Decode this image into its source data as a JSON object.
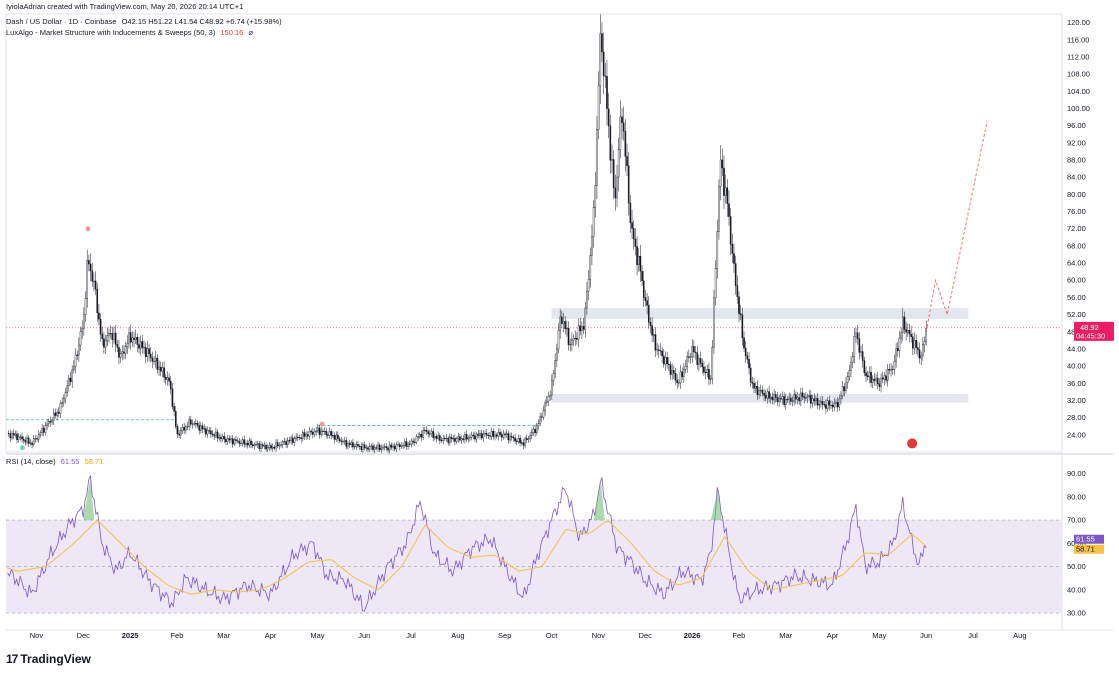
{
  "attribution": "IyiolaAdrian created with TradingView.com, May 20, 2026 20:14 UTC+1",
  "legend": {
    "symbol": "Dash / US Dollar · 1D · Coinbase",
    "ohlc": "O42.15  H51.22  L41.54  C48.92  +6.74 (+15.98%)",
    "indicator": "LuxAlgo - Market Structure with Inducements & Sweeps (50, 3)",
    "indicator_value": "150.16",
    "rsi_label": "RSI (14, close)",
    "rsi_value": "61.55",
    "rsi_ma_value": "58.71"
  },
  "price_tag": {
    "price": "48.92",
    "countdown": "04:45:30",
    "color": "#e91e63"
  },
  "brand": {
    "mark": "17",
    "name": "TradingView"
  },
  "colors": {
    "up": "#131722",
    "rsi": "#7e57c2",
    "rsi_ma": "#f5c146",
    "zone": "#e0e3eb",
    "band": "#ede7f6",
    "projection": "#ef5350"
  },
  "chart_data": [
    {
      "type": "candlestick",
      "title": "",
      "ylim": [
        20,
        122
      ],
      "y_ticks": [
        24,
        28,
        32,
        36,
        40,
        44,
        48,
        52,
        56,
        60,
        64,
        68,
        72,
        76,
        80,
        84,
        88,
        92,
        96,
        100,
        104,
        108,
        112,
        116,
        120
      ],
      "y_tick_labels": [
        "24.00",
        "28.00",
        "32.00",
        "36.00",
        "40.00",
        "44.00",
        "48.00",
        "52.00",
        "56.00",
        "60.00",
        "64.00",
        "68.00",
        "72.00",
        "76.00",
        "80.00",
        "84.00",
        "88.00",
        "92.00",
        "96.00",
        "100.00",
        "104.00",
        "108.00",
        "112.00",
        "116.00",
        "120.00"
      ],
      "x_labels": [
        "Nov",
        "Dec",
        "2025",
        "Feb",
        "Mar",
        "Apr",
        "May",
        "Jun",
        "Jul",
        "Aug",
        "Sep",
        "Oct",
        "Nov",
        "Dec",
        "2026",
        "Feb",
        "Mar",
        "Apr",
        "May",
        "Jun",
        "Jul",
        "Aug"
      ],
      "x_label_months_from_oct2024": [
        1,
        2,
        3,
        4,
        5,
        6,
        7,
        8,
        9,
        10,
        11,
        12,
        13,
        14,
        15,
        16,
        17,
        18,
        19,
        20,
        21,
        22
      ],
      "close_path": [
        {
          "m": 0.0,
          "v": 24
        },
        {
          "m": 0.5,
          "v": 24
        },
        {
          "m": 0.9,
          "v": 22
        },
        {
          "m": 1.2,
          "v": 26
        },
        {
          "m": 1.5,
          "v": 30
        },
        {
          "m": 1.8,
          "v": 40
        },
        {
          "m": 2.0,
          "v": 50
        },
        {
          "m": 2.1,
          "v": 65
        },
        {
          "m": 2.25,
          "v": 58
        },
        {
          "m": 2.4,
          "v": 45
        },
        {
          "m": 2.6,
          "v": 48
        },
        {
          "m": 2.8,
          "v": 42
        },
        {
          "m": 3.0,
          "v": 47
        },
        {
          "m": 3.3,
          "v": 44
        },
        {
          "m": 3.6,
          "v": 40
        },
        {
          "m": 3.85,
          "v": 36
        },
        {
          "m": 4.0,
          "v": 24
        },
        {
          "m": 4.3,
          "v": 27
        },
        {
          "m": 4.6,
          "v": 25
        },
        {
          "m": 5.0,
          "v": 23
        },
        {
          "m": 5.5,
          "v": 22
        },
        {
          "m": 6.0,
          "v": 21
        },
        {
          "m": 6.5,
          "v": 23
        },
        {
          "m": 7.0,
          "v": 25
        },
        {
          "m": 7.3,
          "v": 24
        },
        {
          "m": 7.6,
          "v": 22
        },
        {
          "m": 8.0,
          "v": 21
        },
        {
          "m": 8.5,
          "v": 21
        },
        {
          "m": 9.0,
          "v": 22
        },
        {
          "m": 9.3,
          "v": 25
        },
        {
          "m": 9.6,
          "v": 23
        },
        {
          "m": 10.0,
          "v": 23
        },
        {
          "m": 10.5,
          "v": 24
        },
        {
          "m": 11.0,
          "v": 24
        },
        {
          "m": 11.4,
          "v": 22
        },
        {
          "m": 11.7,
          "v": 26
        },
        {
          "m": 12.0,
          "v": 35
        },
        {
          "m": 12.2,
          "v": 52
        },
        {
          "m": 12.4,
          "v": 45
        },
        {
          "m": 12.7,
          "v": 50
        },
        {
          "m": 12.9,
          "v": 75
        },
        {
          "m": 13.05,
          "v": 118
        },
        {
          "m": 13.2,
          "v": 98
        },
        {
          "m": 13.35,
          "v": 78
        },
        {
          "m": 13.5,
          "v": 100
        },
        {
          "m": 13.7,
          "v": 72
        },
        {
          "m": 13.9,
          "v": 62
        },
        {
          "m": 14.0,
          "v": 55
        },
        {
          "m": 14.2,
          "v": 45
        },
        {
          "m": 14.5,
          "v": 40
        },
        {
          "m": 14.7,
          "v": 36
        },
        {
          "m": 15.0,
          "v": 44
        },
        {
          "m": 15.2,
          "v": 40
        },
        {
          "m": 15.4,
          "v": 37
        },
        {
          "m": 15.6,
          "v": 88
        },
        {
          "m": 15.75,
          "v": 78
        },
        {
          "m": 15.9,
          "v": 62
        },
        {
          "m": 16.1,
          "v": 45
        },
        {
          "m": 16.3,
          "v": 35
        },
        {
          "m": 16.6,
          "v": 33
        },
        {
          "m": 17.0,
          "v": 32
        },
        {
          "m": 17.4,
          "v": 33
        },
        {
          "m": 17.8,
          "v": 31
        },
        {
          "m": 18.1,
          "v": 31
        },
        {
          "m": 18.35,
          "v": 38
        },
        {
          "m": 18.5,
          "v": 48
        },
        {
          "m": 18.7,
          "v": 38
        },
        {
          "m": 19.0,
          "v": 36
        },
        {
          "m": 19.3,
          "v": 40
        },
        {
          "m": 19.5,
          "v": 50
        },
        {
          "m": 19.7,
          "v": 46
        },
        {
          "m": 19.9,
          "v": 42
        },
        {
          "m": 20.0,
          "v": 48.92
        }
      ],
      "zones": [
        {
          "from_m": 12.0,
          "to_m": 20.9,
          "low": 51,
          "high": 53.5
        },
        {
          "from_m": 12.0,
          "to_m": 20.9,
          "low": 31.5,
          "high": 33.5
        }
      ],
      "projection": [
        {
          "m": 20.0,
          "v": 48
        },
        {
          "m": 20.2,
          "v": 60
        },
        {
          "m": 20.45,
          "v": 52
        },
        {
          "m": 21.3,
          "v": 97
        }
      ],
      "last_price": 48.92
    },
    {
      "type": "line",
      "title": "RSI (14, close)",
      "ylim": [
        27,
        95
      ],
      "y_ticks": [
        30,
        40,
        50,
        60,
        70,
        80,
        90
      ],
      "y_tick_labels": [
        "30.00",
        "40.00",
        "50.00",
        "60.00",
        "70.00",
        "80.00",
        "90.00"
      ],
      "band": [
        30,
        70
      ],
      "midline": 50,
      "series": [
        {
          "name": "RSI",
          "color": "#7e57c2",
          "points": [
            {
              "m": 0.0,
              "v": 50
            },
            {
              "m": 0.5,
              "v": 46
            },
            {
              "m": 0.9,
              "v": 38
            },
            {
              "m": 1.3,
              "v": 55
            },
            {
              "m": 1.7,
              "v": 68
            },
            {
              "m": 2.0,
              "v": 75
            },
            {
              "m": 2.15,
              "v": 88
            },
            {
              "m": 2.4,
              "v": 60
            },
            {
              "m": 2.7,
              "v": 48
            },
            {
              "m": 3.0,
              "v": 56
            },
            {
              "m": 3.4,
              "v": 44
            },
            {
              "m": 3.9,
              "v": 34
            },
            {
              "m": 4.2,
              "v": 45
            },
            {
              "m": 4.6,
              "v": 40
            },
            {
              "m": 5.0,
              "v": 36
            },
            {
              "m": 5.5,
              "v": 42
            },
            {
              "m": 6.0,
              "v": 38
            },
            {
              "m": 6.5,
              "v": 55
            },
            {
              "m": 6.9,
              "v": 60
            },
            {
              "m": 7.2,
              "v": 46
            },
            {
              "m": 7.6,
              "v": 44
            },
            {
              "m": 8.0,
              "v": 32
            },
            {
              "m": 8.5,
              "v": 50
            },
            {
              "m": 8.9,
              "v": 60
            },
            {
              "m": 9.2,
              "v": 78
            },
            {
              "m": 9.5,
              "v": 55
            },
            {
              "m": 9.9,
              "v": 48
            },
            {
              "m": 10.3,
              "v": 58
            },
            {
              "m": 10.7,
              "v": 62
            },
            {
              "m": 11.0,
              "v": 50
            },
            {
              "m": 11.4,
              "v": 36
            },
            {
              "m": 11.7,
              "v": 55
            },
            {
              "m": 12.0,
              "v": 70
            },
            {
              "m": 12.3,
              "v": 84
            },
            {
              "m": 12.6,
              "v": 62
            },
            {
              "m": 12.9,
              "v": 72
            },
            {
              "m": 13.05,
              "v": 87
            },
            {
              "m": 13.4,
              "v": 58
            },
            {
              "m": 13.7,
              "v": 52
            },
            {
              "m": 14.0,
              "v": 44
            },
            {
              "m": 14.4,
              "v": 38
            },
            {
              "m": 14.8,
              "v": 48
            },
            {
              "m": 15.2,
              "v": 44
            },
            {
              "m": 15.4,
              "v": 56
            },
            {
              "m": 15.55,
              "v": 83
            },
            {
              "m": 15.8,
              "v": 55
            },
            {
              "m": 16.0,
              "v": 36
            },
            {
              "m": 16.4,
              "v": 40
            },
            {
              "m": 16.8,
              "v": 42
            },
            {
              "m": 17.2,
              "v": 46
            },
            {
              "m": 17.6,
              "v": 44
            },
            {
              "m": 18.0,
              "v": 42
            },
            {
              "m": 18.3,
              "v": 60
            },
            {
              "m": 18.5,
              "v": 76
            },
            {
              "m": 18.7,
              "v": 50
            },
            {
              "m": 19.0,
              "v": 52
            },
            {
              "m": 19.3,
              "v": 60
            },
            {
              "m": 19.5,
              "v": 77
            },
            {
              "m": 19.7,
              "v": 60
            },
            {
              "m": 19.85,
              "v": 50
            },
            {
              "m": 20.0,
              "v": 61.55
            }
          ]
        },
        {
          "name": "RSI-based MA",
          "color": "#f5c146",
          "points": [
            {
              "m": 0.0,
              "v": 52
            },
            {
              "m": 0.6,
              "v": 48
            },
            {
              "m": 1.2,
              "v": 50
            },
            {
              "m": 1.8,
              "v": 60
            },
            {
              "m": 2.3,
              "v": 70
            },
            {
              "m": 2.8,
              "v": 60
            },
            {
              "m": 3.3,
              "v": 50
            },
            {
              "m": 3.8,
              "v": 42
            },
            {
              "m": 4.3,
              "v": 38
            },
            {
              "m": 4.8,
              "v": 40
            },
            {
              "m": 5.3,
              "v": 39
            },
            {
              "m": 5.8,
              "v": 40
            },
            {
              "m": 6.3,
              "v": 45
            },
            {
              "m": 6.8,
              "v": 52
            },
            {
              "m": 7.3,
              "v": 53
            },
            {
              "m": 7.8,
              "v": 45
            },
            {
              "m": 8.3,
              "v": 40
            },
            {
              "m": 8.8,
              "v": 50
            },
            {
              "m": 9.3,
              "v": 68
            },
            {
              "m": 9.8,
              "v": 58
            },
            {
              "m": 10.3,
              "v": 54
            },
            {
              "m": 10.8,
              "v": 55
            },
            {
              "m": 11.3,
              "v": 48
            },
            {
              "m": 11.8,
              "v": 50
            },
            {
              "m": 12.3,
              "v": 66
            },
            {
              "m": 12.8,
              "v": 64
            },
            {
              "m": 13.2,
              "v": 70
            },
            {
              "m": 13.7,
              "v": 60
            },
            {
              "m": 14.2,
              "v": 48
            },
            {
              "m": 14.7,
              "v": 42
            },
            {
              "m": 15.2,
              "v": 45
            },
            {
              "m": 15.7,
              "v": 63
            },
            {
              "m": 16.2,
              "v": 48
            },
            {
              "m": 16.7,
              "v": 40
            },
            {
              "m": 17.2,
              "v": 42
            },
            {
              "m": 17.7,
              "v": 44
            },
            {
              "m": 18.2,
              "v": 46
            },
            {
              "m": 18.7,
              "v": 56
            },
            {
              "m": 19.2,
              "v": 55
            },
            {
              "m": 19.7,
              "v": 64
            },
            {
              "m": 20.0,
              "v": 58.71
            }
          ]
        }
      ]
    }
  ]
}
